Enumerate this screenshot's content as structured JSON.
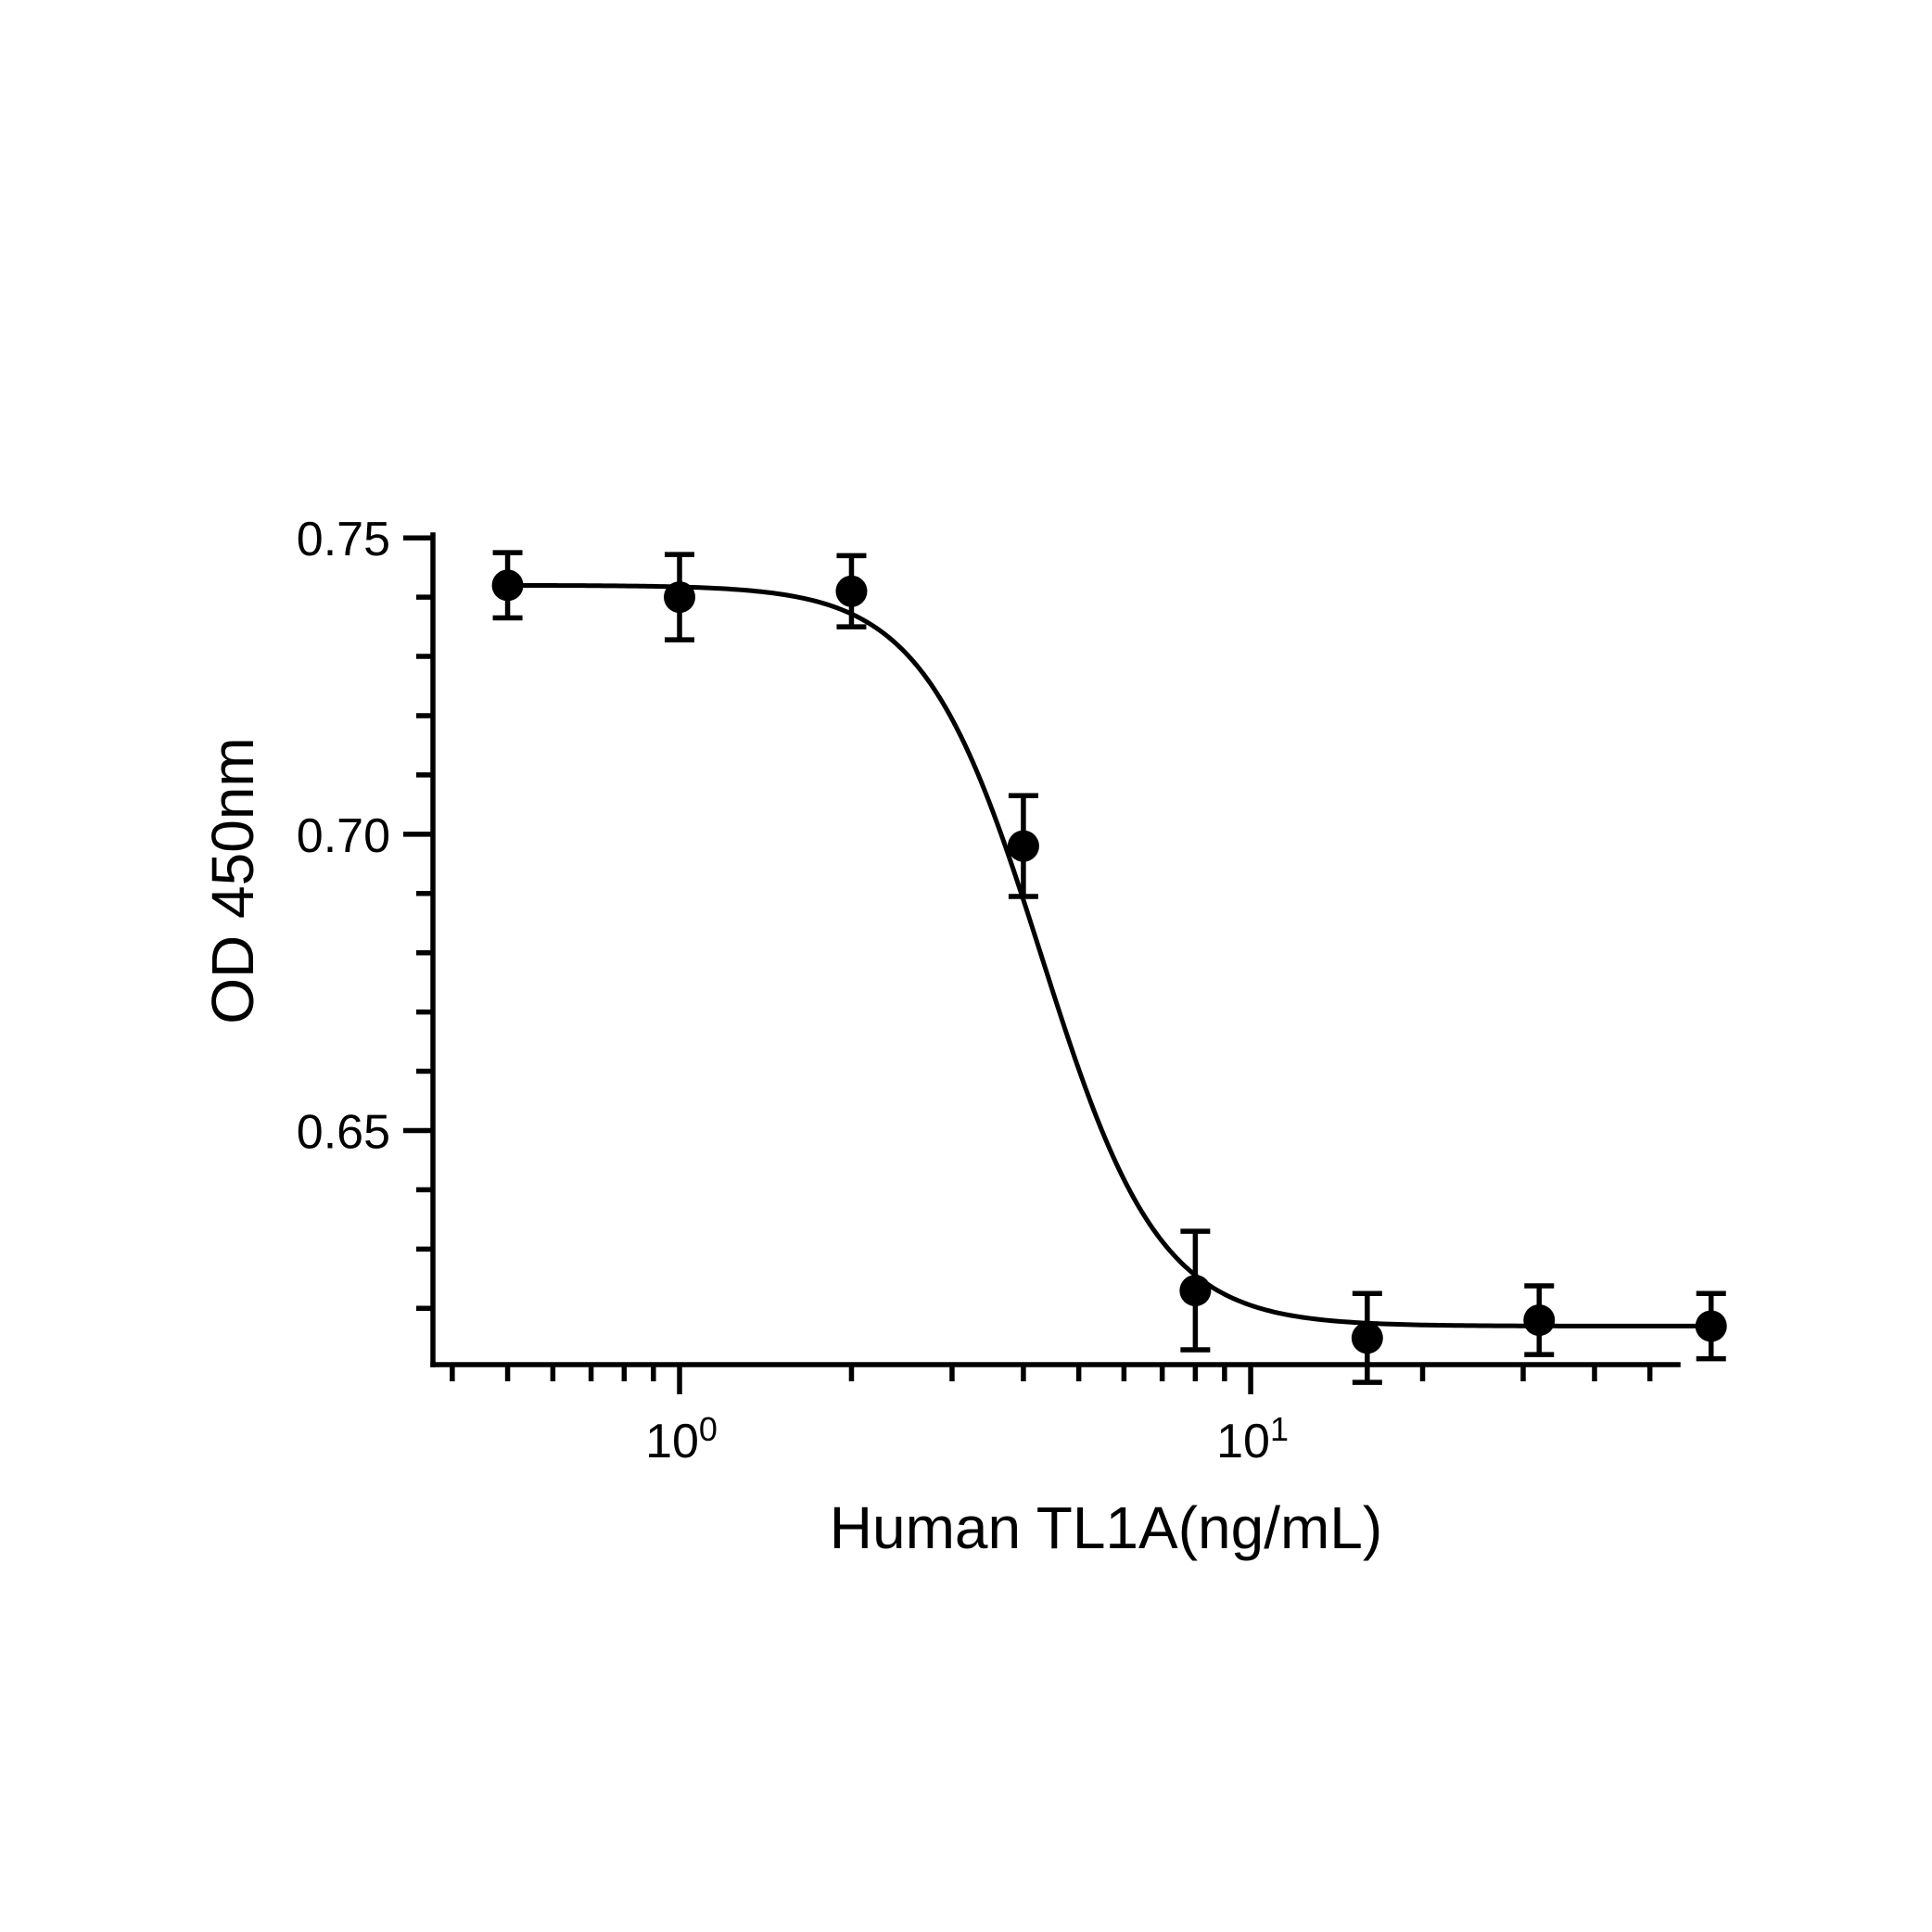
{
  "chart_data": {
    "type": "scatter",
    "title": "",
    "xlabel": "Human TL1A(ng/mL)",
    "ylabel": "OD 450nm",
    "x_scale": "log",
    "xlim": [
      0.37,
      56
    ],
    "ylim": [
      0.6105,
      0.7505
    ],
    "grid": false,
    "legend": "none",
    "y_ticks": [
      0.65,
      0.7,
      0.75
    ],
    "y_tick_labels": [
      "0.65",
      "0.70",
      "0.75"
    ],
    "x_ticks": [
      1,
      10
    ],
    "x_tick_labels": [
      {
        "base": "10",
        "exp": "0"
      },
      {
        "base": "10",
        "exp": "1"
      }
    ],
    "series": [
      {
        "x": [
          0.5,
          1,
          2,
          4,
          8,
          16,
          32,
          64
        ],
        "y": [
          0.742,
          0.74,
          0.741,
          0.698,
          0.623,
          0.615,
          0.618,
          0.617
        ],
        "error": [
          0.0055,
          0.0072,
          0.006,
          0.0085,
          0.01,
          0.0075,
          0.0058,
          0.0055
        ]
      }
    ],
    "fit": {
      "model": "4PL",
      "top": 0.742,
      "bottom": 0.617,
      "ec50": 4.3,
      "hill": 4.2
    },
    "colors": {
      "marks": "#000000",
      "background": "#ffffff"
    }
  }
}
